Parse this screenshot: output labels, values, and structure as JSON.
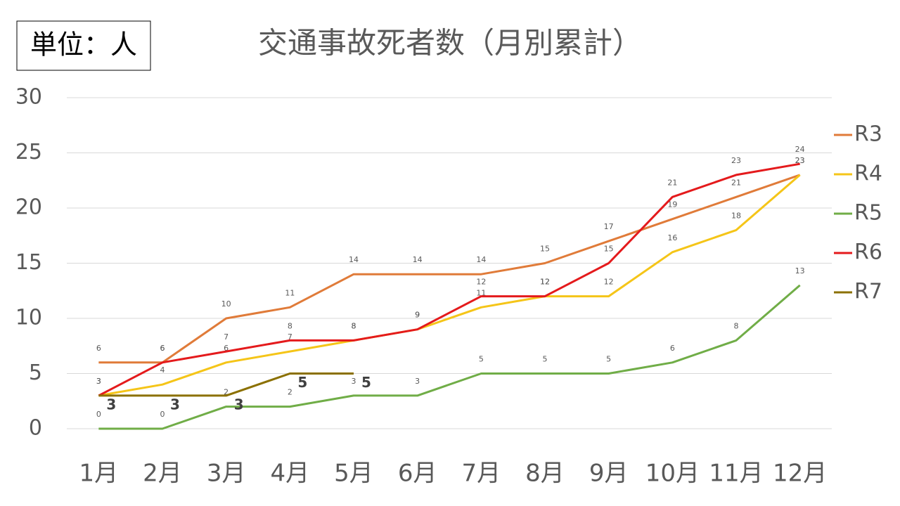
{
  "unit_box": "単位：人",
  "chart_data": {
    "type": "line",
    "title": "交通事故死者数（月別累計）",
    "categories": [
      "1月",
      "2月",
      "3月",
      "4月",
      "5月",
      "6月",
      "7月",
      "8月",
      "9月",
      "10月",
      "11月",
      "12月"
    ],
    "series": [
      {
        "name": "R3",
        "color": "#e07b39",
        "values": [
          6,
          6,
          10,
          11,
          14,
          14,
          14,
          15,
          17,
          19,
          21,
          23
        ]
      },
      {
        "name": "R4",
        "color": "#f5c518",
        "values": [
          3,
          4,
          6,
          7,
          8,
          9,
          11,
          12,
          12,
          16,
          18,
          23
        ]
      },
      {
        "name": "R5",
        "color": "#70ad47",
        "values": [
          0,
          0,
          2,
          2,
          3,
          3,
          5,
          5,
          5,
          6,
          8,
          13
        ]
      },
      {
        "name": "R6",
        "color": "#e41a1c",
        "values": [
          3,
          6,
          7,
          8,
          8,
          9,
          12,
          12,
          15,
          21,
          23,
          24
        ]
      },
      {
        "name": "R7",
        "color": "#8b7000",
        "values": [
          3,
          3,
          3,
          5,
          5,
          null,
          null,
          null,
          null,
          null,
          null,
          null
        ]
      }
    ],
    "ylim": [
      0,
      30
    ],
    "yticks": [
      0,
      5,
      10,
      15,
      20,
      25,
      30
    ],
    "grid": true,
    "legend": "right"
  }
}
